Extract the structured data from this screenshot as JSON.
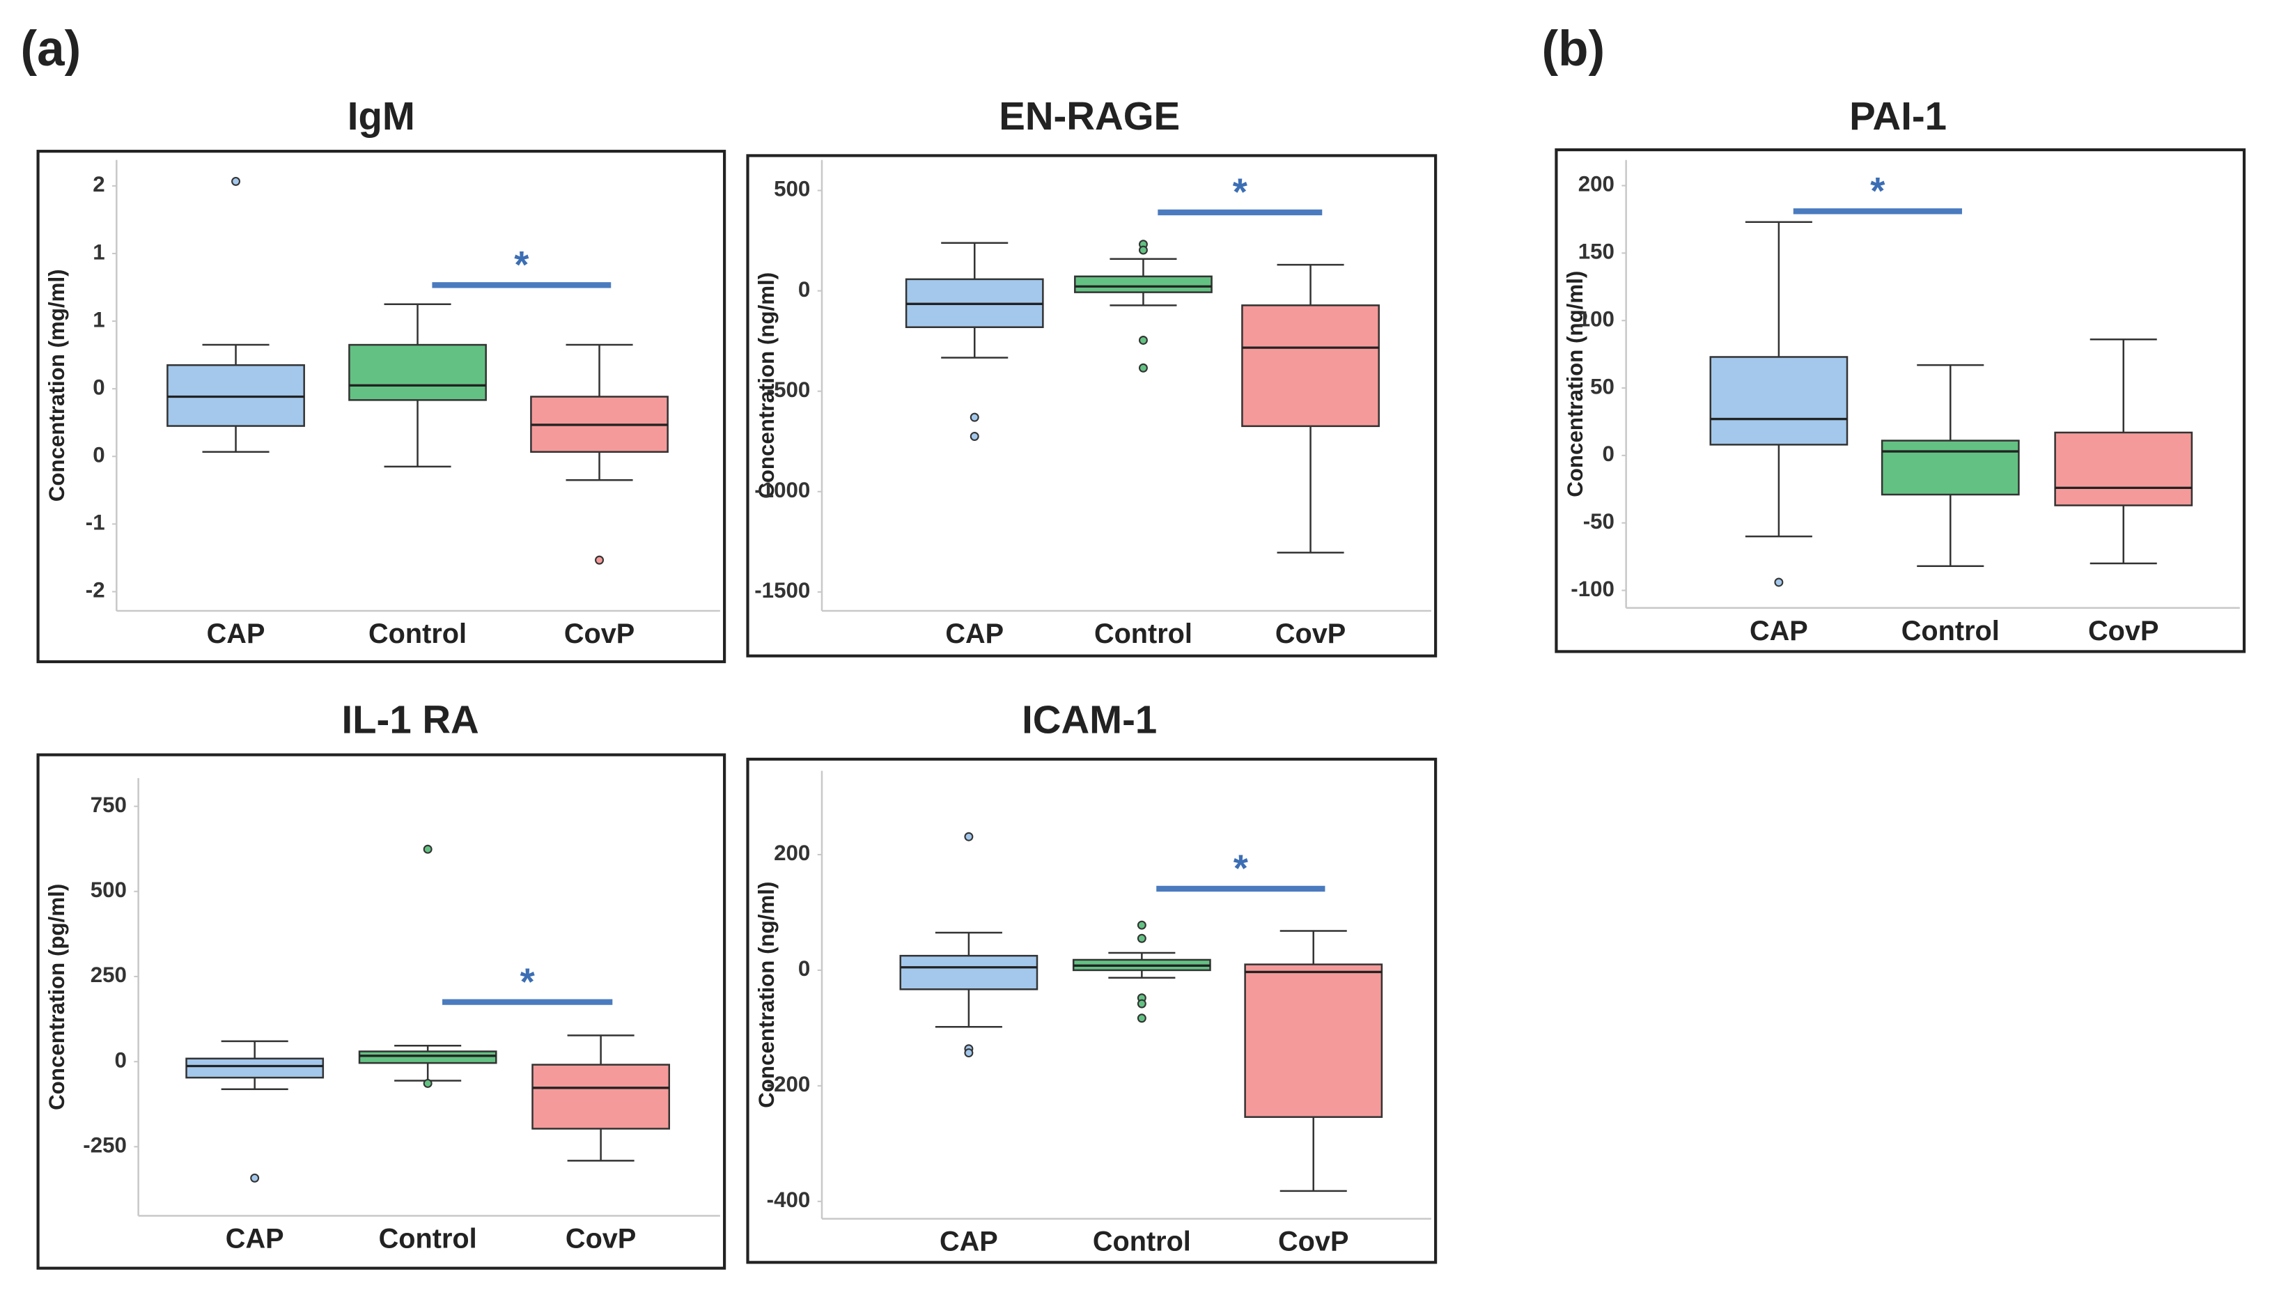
{
  "panel_labels": [
    "(a)",
    "(b)"
  ],
  "chart_data": [
    {
      "type": "box",
      "title": "IgM",
      "y_label": "Concentration (mg/ml)",
      "categories": [
        "CAP",
        "Control",
        "CovP"
      ],
      "colors": [
        "#a3c8ec",
        "#63c283",
        "#f59a9a"
      ],
      "boxes": [
        {
          "min": -0.36,
          "q1": -0.13,
          "median": 0.13,
          "q3": 0.41,
          "max": 0.59,
          "outliers": [
            2.04
          ]
        },
        {
          "min": -0.49,
          "q1": 0.1,
          "median": 0.23,
          "q3": 0.59,
          "max": 0.95,
          "outliers": []
        },
        {
          "min": -0.61,
          "q1": -0.36,
          "median": -0.12,
          "q3": 0.13,
          "max": 0.59,
          "outliers": [
            -1.32
          ]
        }
      ],
      "ylim": [
        -1.77,
        2.23
      ],
      "yticks": [
        {
          "value": 2,
          "label": "2"
        },
        {
          "value": 1.4,
          "label": "1"
        },
        {
          "value": 0.8,
          "label": "1"
        },
        {
          "value": 0.2,
          "label": "0"
        },
        {
          "value": -0.4,
          "label": "0"
        },
        {
          "value": -1,
          "label": "-1"
        },
        {
          "value": -1.6,
          "label": "-2"
        }
      ],
      "significance": {
        "from": 1,
        "to": 2,
        "y": 1.12,
        "label": "*"
      }
    },
    {
      "type": "box",
      "title": "EN-RAGE",
      "y_label": "Concentration (ng/ml)",
      "categories": [
        "CAP",
        "Control",
        "CovP"
      ],
      "colors": [
        "#a3c8ec",
        "#63c283",
        "#f59a9a"
      ],
      "boxes": [
        {
          "min": -333,
          "q1": -181,
          "median": -65,
          "q3": 58,
          "max": 239,
          "outliers": [
            -630,
            -725
          ]
        },
        {
          "min": -72,
          "q1": -7,
          "median": 22,
          "q3": 72,
          "max": 159,
          "outliers": [
            232,
            203,
            -246,
            -384
          ]
        },
        {
          "min": -1304,
          "q1": -674,
          "median": -283,
          "q3": -72,
          "max": 130,
          "outliers": []
        }
      ],
      "ylim": [
        -1594,
        652
      ],
      "yticks": [
        500,
        0,
        -500,
        -1000,
        -1500
      ],
      "significance": {
        "from": 1,
        "to": 2,
        "y": 391,
        "label": "*"
      }
    },
    {
      "type": "box",
      "title": "PAI-1",
      "y_label": "Concentration (ng/ml)",
      "categories": [
        "CAP",
        "Control",
        "CovP"
      ],
      "colors": [
        "#a3c8ec",
        "#63c283",
        "#f59a9a"
      ],
      "boxes": [
        {
          "min": -60,
          "q1": 8,
          "median": 27,
          "q3": 73,
          "max": 173,
          "outliers": [
            -94
          ]
        },
        {
          "min": -82,
          "q1": -29,
          "median": 3,
          "q3": 11,
          "max": 67,
          "outliers": []
        },
        {
          "min": -80,
          "q1": -37,
          "median": -24,
          "q3": 17,
          "max": 86,
          "outliers": []
        }
      ],
      "ylim": [
        -113,
        219
      ],
      "yticks": [
        200,
        150,
        100,
        50,
        0,
        -50,
        -100
      ],
      "significance": {
        "from": 0,
        "to": 1,
        "y": 181,
        "label": "*"
      }
    },
    {
      "type": "box",
      "title": "IL-1 RA",
      "y_label": "Concentration (pg/ml)",
      "categories": [
        "CAP",
        "Control",
        "CovP"
      ],
      "colors": [
        "#a3c8ec",
        "#63c283",
        "#f59a9a"
      ],
      "boxes": [
        {
          "min": -81,
          "q1": -47,
          "median": -13,
          "q3": 9,
          "max": 60,
          "outliers": [
            -342
          ]
        },
        {
          "min": -56,
          "q1": -4,
          "median": 17,
          "q3": 30,
          "max": 47,
          "outliers": [
            624,
            -64
          ]
        },
        {
          "min": -291,
          "q1": -197,
          "median": -77,
          "q3": -9,
          "max": 77,
          "outliers": []
        }
      ],
      "ylim": [
        -453,
        833
      ],
      "yticks": [
        750,
        500,
        250,
        0,
        -250
      ],
      "significance": {
        "from": 1,
        "to": 2,
        "y": 175,
        "label": "*"
      }
    },
    {
      "type": "box",
      "title": "ICAM-1",
      "y_label": "Concentration (ng/ml)",
      "categories": [
        "CAP",
        "Control",
        "CovP"
      ],
      "colors": [
        "#a3c8ec",
        "#63c283",
        "#f59a9a"
      ],
      "boxes": [
        {
          "min": -98,
          "q1": -33,
          "median": 5,
          "q3": 25,
          "max": 65,
          "outliers": [
            231,
            -136,
            -143
          ]
        },
        {
          "min": -13,
          "q1": 0,
          "median": 8,
          "q3": 18,
          "max": 30,
          "outliers": [
            78,
            55,
            -48,
            -58,
            -83
          ]
        },
        {
          "min": -382,
          "q1": -254,
          "median": -3,
          "q3": 10,
          "max": 68,
          "outliers": []
        }
      ],
      "ylim": [
        -430,
        345
      ],
      "yticks": [
        200,
        0,
        -200,
        -400
      ],
      "significance": {
        "from": 1,
        "to": 2,
        "y": 141,
        "label": "*"
      }
    }
  ]
}
